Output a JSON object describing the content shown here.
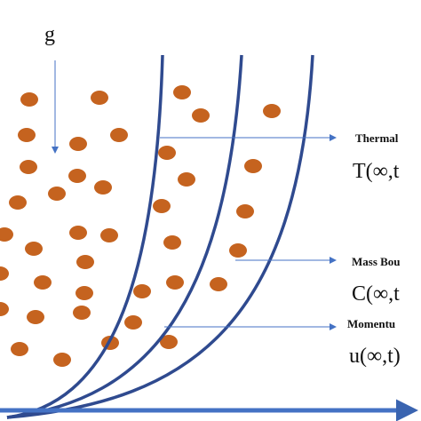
{
  "gravity": {
    "label": "g"
  },
  "labels": [
    {
      "name": "Thermal",
      "formula": "T(∞,t"
    },
    {
      "name": "Mass Bou",
      "formula": "C(∞,t"
    },
    {
      "name": "Momentu",
      "formula": "u(∞,t)"
    }
  ]
}
